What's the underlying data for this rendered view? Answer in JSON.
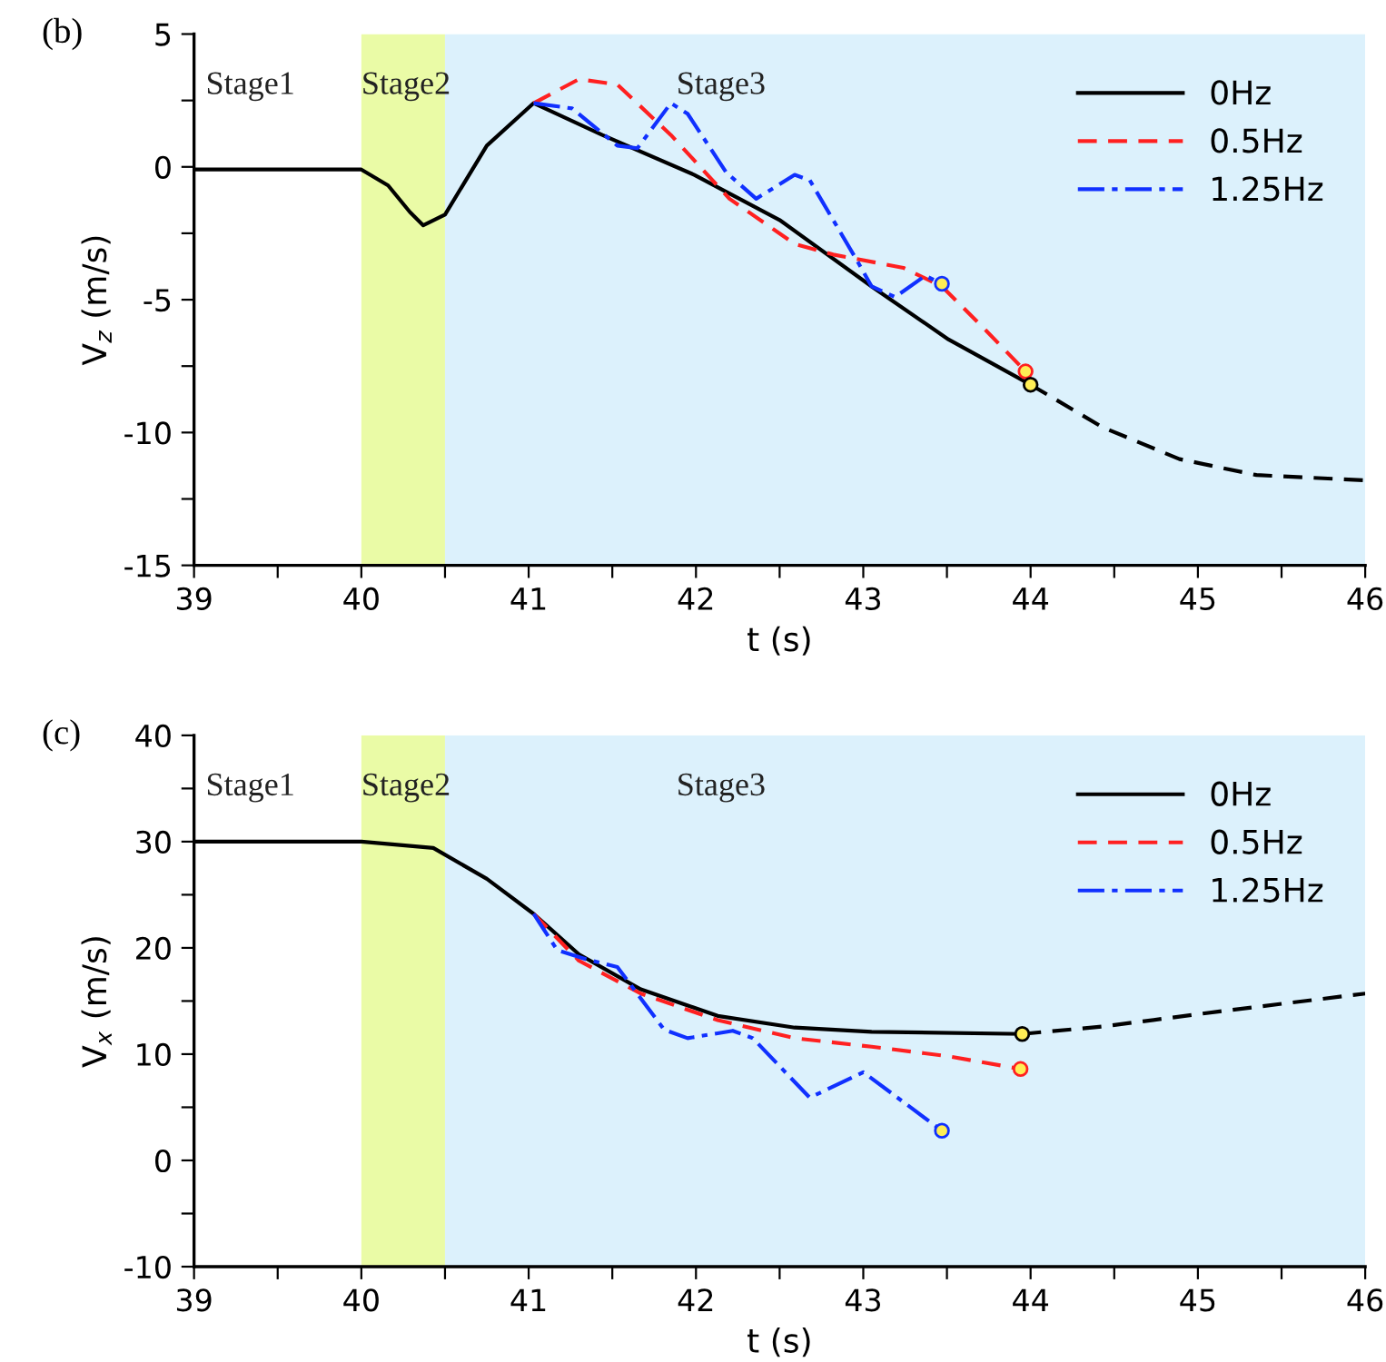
{
  "chart_data": [
    {
      "type": "line",
      "title": "(b)",
      "xlabel": "t (s)",
      "ylabel": "V$_{z}$ (m/s)",
      "xlim": [
        39,
        46
      ],
      "ylim": [
        -15,
        5
      ],
      "xticks": [
        39,
        {
          "value": 39.5,
          "label": null
        },
        40,
        {
          "value": 40.5,
          "label": null
        },
        41,
        {
          "value": 41.5,
          "label": null
        },
        42,
        {
          "value": 42.5,
          "label": null
        },
        43,
        {
          "value": 43.5,
          "label": null
        },
        44,
        {
          "value": 44.5,
          "label": null
        },
        45,
        {
          "value": 45.5,
          "label": null
        },
        46
      ],
      "yticks": [
        -15,
        {
          "value": -12.5,
          "label": null
        },
        -10,
        {
          "value": -7.5,
          "label": null
        },
        -5,
        {
          "value": -2.5,
          "label": null
        },
        0,
        {
          "value": 2.5,
          "label": null
        },
        5
      ],
      "grid": false,
      "legend": "top right",
      "bands": [
        {
          "axis": "x",
          "from": 40,
          "to": 40.5,
          "label": "Stage2",
          "color": "#eafba6"
        },
        {
          "axis": "x",
          "from": 40.5,
          "to": 46,
          "label": "Stage3",
          "color": "#dcf1fc"
        }
      ],
      "annotations": [
        "Stage1"
      ],
      "series": [
        {
          "name": "0Hz",
          "color": "#000000",
          "line_style": "solid",
          "x": [
            39,
            40,
            40.16,
            40.29,
            40.37,
            40.5,
            40.75,
            41.03,
            41.44,
            41.99,
            42.5,
            43.05,
            43.51,
            44
          ],
          "values": [
            -0.1,
            -0.1,
            -0.7,
            -1.7,
            -2.2,
            -1.8,
            0.8,
            2.4,
            1.2,
            -0.3,
            -2.0,
            -4.5,
            -6.5,
            -8.2
          ]
        },
        {
          "name": "0.5Hz",
          "color": "#ff2020",
          "line_style": "dashed",
          "x": [
            41.03,
            41.3,
            41.53,
            41.85,
            42.2,
            42.59,
            42.82,
            43.24,
            43.47,
            43.74,
            43.97
          ],
          "values": [
            2.4,
            3.3,
            3.1,
            1.2,
            -1.2,
            -2.9,
            -3.3,
            -3.8,
            -4.5,
            -6.2,
            -7.7
          ]
        },
        {
          "name": "1.25Hz",
          "color": "#1030ff",
          "line_style": "dashdot",
          "x": [
            41.03,
            41.26,
            41.53,
            41.65,
            41.85,
            41.95,
            42.18,
            42.36,
            42.59,
            42.68,
            42.96,
            43.05,
            43.19,
            43.37,
            43.47
          ],
          "values": [
            2.4,
            2.2,
            0.8,
            0.7,
            2.4,
            2.0,
            -0.2,
            -1.2,
            -0.3,
            -0.5,
            -3.5,
            -4.5,
            -4.9,
            -4.1,
            -4.4
          ]
        },
        {
          "color": "#000000",
          "line_style": "dashed",
          "x": [
            44,
            44.43,
            44.89,
            45.35,
            46
          ],
          "values": [
            -8.2,
            -9.8,
            -11.0,
            -11.6,
            -11.8
          ]
        },
        {
          "type": "scatter",
          "marker": "circle",
          "color": "#ffee55",
          "colors": [
            "#1030ff",
            "#ff2020",
            "#000000"
          ],
          "x": [
            43.47,
            43.97,
            44
          ],
          "values": [
            -4.4,
            -7.7,
            -8.2
          ]
        }
      ]
    },
    {
      "type": "line",
      "title": "(c)",
      "xlabel": "t (s)",
      "ylabel": "V$_{x}$ (m/s)",
      "xlim": [
        39,
        46
      ],
      "ylim": [
        -10,
        40
      ],
      "xticks": [
        39,
        {
          "value": 39.5,
          "label": null
        },
        40,
        {
          "value": 40.5,
          "label": null
        },
        41,
        {
          "value": 41.5,
          "label": null
        },
        42,
        {
          "value": 42.5,
          "label": null
        },
        43,
        {
          "value": 43.5,
          "label": null
        },
        44,
        {
          "value": 44.5,
          "label": null
        },
        45,
        {
          "value": 45.5,
          "label": null
        },
        46
      ],
      "yticks": [
        -10,
        {
          "value": -5,
          "label": null
        },
        0,
        {
          "value": 5,
          "label": null
        },
        10,
        {
          "value": 15,
          "label": null
        },
        20,
        {
          "value": 25,
          "label": null
        },
        30,
        {
          "value": 35,
          "label": null
        },
        40
      ],
      "grid": false,
      "legend": "top right",
      "bands": [
        {
          "axis": "x",
          "from": 40,
          "to": 40.5,
          "label": "Stage2",
          "color": "#eafba6"
        },
        {
          "axis": "x",
          "from": 40.5,
          "to": 46,
          "label": "Stage3",
          "color": "#dcf1fc"
        }
      ],
      "annotations": [
        "Stage1"
      ],
      "series": [
        {
          "name": "0Hz",
          "color": "#000000",
          "line_style": "solid",
          "x": [
            39,
            40,
            40.43,
            40.75,
            41.03,
            41.3,
            41.67,
            42.13,
            42.59,
            43.05,
            43.95
          ],
          "values": [
            30,
            30,
            29.4,
            26.5,
            23.2,
            19.4,
            16.1,
            13.6,
            12.5,
            12.1,
            11.9
          ]
        },
        {
          "name": "0.5Hz",
          "color": "#ff2020",
          "line_style": "dashed",
          "x": [
            41.03,
            41.3,
            41.67,
            42.13,
            42.59,
            43.05,
            43.51,
            43.94
          ],
          "values": [
            23.2,
            18.8,
            15.7,
            13.2,
            11.5,
            10.7,
            9.8,
            8.6
          ]
        },
        {
          "name": "1.25Hz",
          "color": "#1030ff",
          "line_style": "dashdot",
          "x": [
            41.03,
            41.17,
            41.35,
            41.53,
            41.81,
            41.95,
            42.22,
            42.34,
            42.68,
            43.0,
            43.47
          ],
          "values": [
            23.2,
            19.8,
            18.9,
            18.2,
            12.3,
            11.5,
            12.2,
            11.5,
            5.9,
            8.3,
            2.8
          ]
        },
        {
          "color": "#000000",
          "line_style": "dashed",
          "x": [
            43.95,
            44.43,
            45.12,
            46
          ],
          "values": [
            11.9,
            12.6,
            14.0,
            15.7
          ]
        },
        {
          "type": "scatter",
          "marker": "circle",
          "color": "#ffee55",
          "colors": [
            "#1030ff",
            "#ff2020",
            "#000000"
          ],
          "x": [
            43.47,
            43.94,
            43.95
          ],
          "values": [
            2.8,
            8.6,
            11.9
          ]
        }
      ]
    }
  ]
}
